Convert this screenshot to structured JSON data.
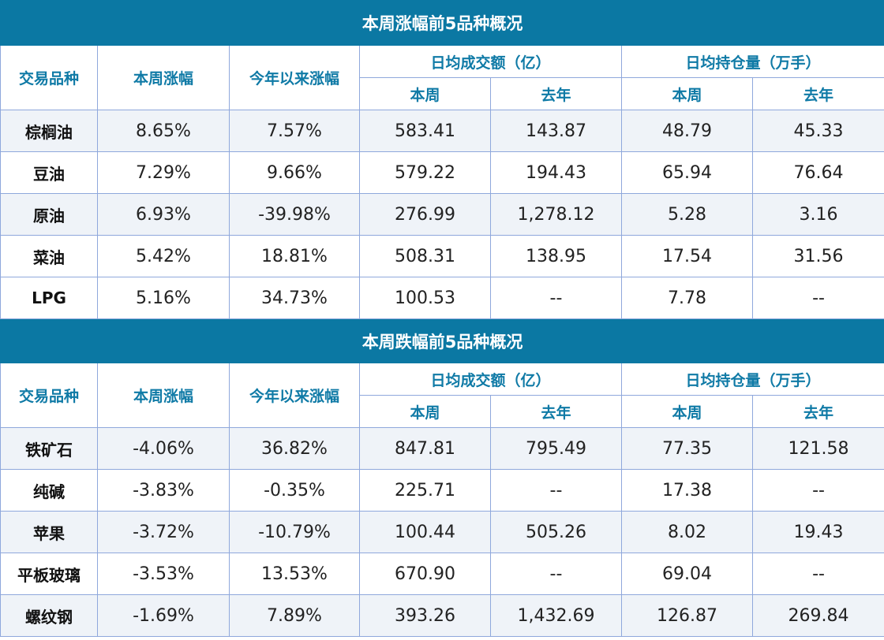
{
  "sections": [
    {
      "title": "本周涨幅前5品种概况",
      "headers": {
        "name": "交易品种",
        "weekly_change": "本周涨幅",
        "ytd_change": "今年以来涨幅",
        "turnover_group": "日均成交额（亿）",
        "oi_group": "日均持仓量（万手）",
        "this_week": "本周",
        "last_year": "去年"
      },
      "rows": [
        {
          "name": "棕榈油",
          "weekly": "8.65%",
          "ytd": "7.57%",
          "turnover_week": "583.41",
          "turnover_ly": "143.87",
          "oi_week": "48.79",
          "oi_ly": "45.33"
        },
        {
          "name": "豆油",
          "weekly": "7.29%",
          "ytd": "9.66%",
          "turnover_week": "579.22",
          "turnover_ly": "194.43",
          "oi_week": "65.94",
          "oi_ly": "76.64"
        },
        {
          "name": "原油",
          "weekly": "6.93%",
          "ytd": "-39.98%",
          "turnover_week": "276.99",
          "turnover_ly": "1,278.12",
          "oi_week": "5.28",
          "oi_ly": "3.16"
        },
        {
          "name": "菜油",
          "weekly": "5.42%",
          "ytd": "18.81%",
          "turnover_week": "508.31",
          "turnover_ly": "138.95",
          "oi_week": "17.54",
          "oi_ly": "31.56"
        },
        {
          "name": "LPG",
          "weekly": "5.16%",
          "ytd": "34.73%",
          "turnover_week": "100.53",
          "turnover_ly": "--",
          "oi_week": "7.78",
          "oi_ly": "--"
        }
      ]
    },
    {
      "title": "本周跌幅前5品种概况",
      "headers": {
        "name": "交易品种",
        "weekly_change": "本周涨幅",
        "ytd_change": "今年以来涨幅",
        "turnover_group": "日均成交额（亿）",
        "oi_group": "日均持仓量（万手）",
        "this_week": "本周",
        "last_year": "去年"
      },
      "rows": [
        {
          "name": "铁矿石",
          "weekly": "-4.06%",
          "ytd": "36.82%",
          "turnover_week": "847.81",
          "turnover_ly": "795.49",
          "oi_week": "77.35",
          "oi_ly": "121.58"
        },
        {
          "name": "纯碱",
          "weekly": "-3.83%",
          "ytd": "-0.35%",
          "turnover_week": "225.71",
          "turnover_ly": "--",
          "oi_week": "17.38",
          "oi_ly": "--"
        },
        {
          "name": "苹果",
          "weekly": "-3.72%",
          "ytd": "-10.79%",
          "turnover_week": "100.44",
          "turnover_ly": "505.26",
          "oi_week": "8.02",
          "oi_ly": "19.43"
        },
        {
          "name": "平板玻璃",
          "weekly": "-3.53%",
          "ytd": "13.53%",
          "turnover_week": "670.90",
          "turnover_ly": "--",
          "oi_week": "69.04",
          "oi_ly": "--"
        },
        {
          "name": "螺纹钢",
          "weekly": "-1.69%",
          "ytd": "7.89%",
          "turnover_week": "393.26",
          "turnover_ly": "1,432.69",
          "oi_week": "126.87",
          "oi_ly": "269.84"
        }
      ]
    }
  ],
  "colors": {
    "title_bg": "#0b78a3",
    "header_text": "#0f7aa6",
    "border": "#8fa8dc",
    "alt_row_bg": "#eff3f8"
  }
}
